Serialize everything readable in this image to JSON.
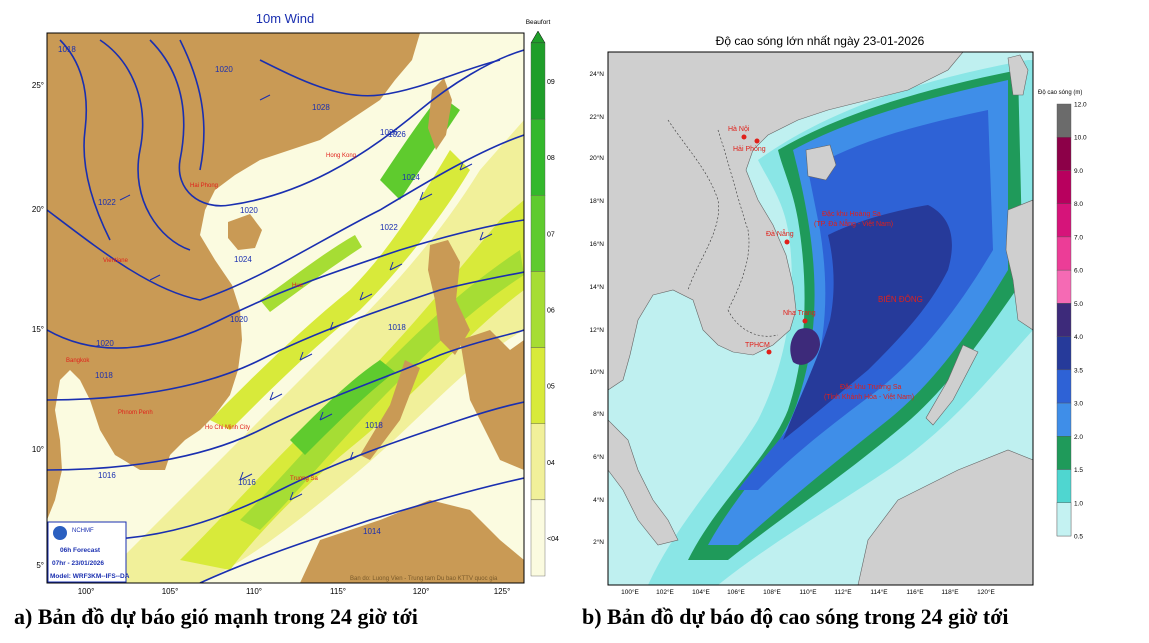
{
  "panel_a": {
    "title": "10m Wind",
    "legend_title": "Beaufort",
    "legend_levels": [
      {
        "label": "09",
        "color": "#1f9e2a"
      },
      {
        "label": "08",
        "color": "#33b82c"
      },
      {
        "label": "07",
        "color": "#5fcb2e"
      },
      {
        "label": "06",
        "color": "#a6dd34"
      },
      {
        "label": "05",
        "color": "#d8ea3a"
      },
      {
        "label": "04",
        "color": "#f1f09a"
      },
      {
        "label": "<04",
        "color": "#fbfbe0"
      }
    ],
    "lat_labels": [
      "25°",
      "20°",
      "15°",
      "10°",
      "5°"
    ],
    "lon_labels": [
      "100°",
      "105°",
      "110°",
      "115°",
      "120°",
      "125°"
    ],
    "isobar_labels": [
      "1018",
      "1026",
      "1020",
      "1022",
      "1020",
      "1024",
      "1018",
      "1020",
      "1016",
      "1018",
      "1014",
      "1016",
      "1018",
      "1022",
      "1020",
      "1026",
      "1028",
      "1024"
    ],
    "place_labels": [
      "Hong Kong",
      "Vientiane",
      "Hue",
      "Bangkok",
      "Ho Chi Minh City",
      "Phnom Penh",
      "Truong Sa",
      "Hai Phong"
    ],
    "badge": {
      "org": "NCHMF",
      "line1": "06h Forecast",
      "line2": "07hr - 23/01/2026",
      "line3": "Model: WRF3KM--IFS--DA"
    },
    "credit": "Ban do: Luong Vien - Trung tam Du bao KTTV quoc gia",
    "colors": {
      "land": "#c99a55",
      "sea_low": "#fbfbe0",
      "sea_4": "#f1f09a",
      "sea_5": "#d8ea3a",
      "sea_6": "#a6dd34",
      "sea_7": "#5fcb2e",
      "isobar": "#1a2fb0"
    }
  },
  "panel_b": {
    "title": "Độ cao sóng lớn nhất ngày 23-01-2026",
    "legend_title": "Độ cao sóng (m)",
    "legend_levels": [
      {
        "label": "12.0",
        "color": "#6b6b6b"
      },
      {
        "label": "10.0",
        "color": "#8c0048"
      },
      {
        "label": "9.0",
        "color": "#b8005e"
      },
      {
        "label": "8.0",
        "color": "#d6147a"
      },
      {
        "label": "7.0",
        "color": "#ec3d97"
      },
      {
        "label": "6.0",
        "color": "#f56ab4"
      },
      {
        "label": "5.0",
        "color": "#3d2a7a"
      },
      {
        "label": "4.0",
        "color": "#263a9a"
      },
      {
        "label": "3.5",
        "color": "#2e62d6"
      },
      {
        "label": "3.0",
        "color": "#3f8ee8"
      },
      {
        "label": "2.0",
        "color": "#1f9a5a"
      },
      {
        "label": "1.5",
        "color": "#4fd6d0"
      },
      {
        "label": "1.0",
        "color": "#8ae6e6"
      },
      {
        "label": "0.5",
        "color": ""
      }
    ],
    "lat_labels": [
      "24°N",
      "22°N",
      "20°N",
      "18°N",
      "16°N",
      "14°N",
      "12°N",
      "10°N",
      "8°N",
      "6°N",
      "4°N",
      "2°N"
    ],
    "lon_labels": [
      "100°E",
      "102°E",
      "104°E",
      "106°E",
      "108°E",
      "110°E",
      "112°E",
      "114°E",
      "116°E",
      "118°E",
      "120°E"
    ],
    "place_labels": {
      "hanoi": "Hà Nội",
      "haiphong": "Hải Phòng",
      "hoangsa1": "Đặc khu Hoàng Sa",
      "hoangsa2": "(TP. Đà Nẵng - Việt Nam)",
      "danang": "Đà Nẵng",
      "biendong": "BIỂN ĐÔNG",
      "nhatrang": "Nha Trang",
      "tphcm": "TPHCM",
      "truongsa1": "Đặc khu Trường Sa",
      "truongsa2": "(Tỉnh Khánh Hòa - Việt Nam)"
    },
    "colors": {
      "land": "#cfcfcf",
      "label_red": "#e0201a"
    }
  },
  "captions": {
    "a": "a) Bản đồ dự báo gió mạnh trong 24 giờ tới",
    "b": "b) Bản đồ dự báo độ cao sóng trong 24 giờ tới"
  }
}
